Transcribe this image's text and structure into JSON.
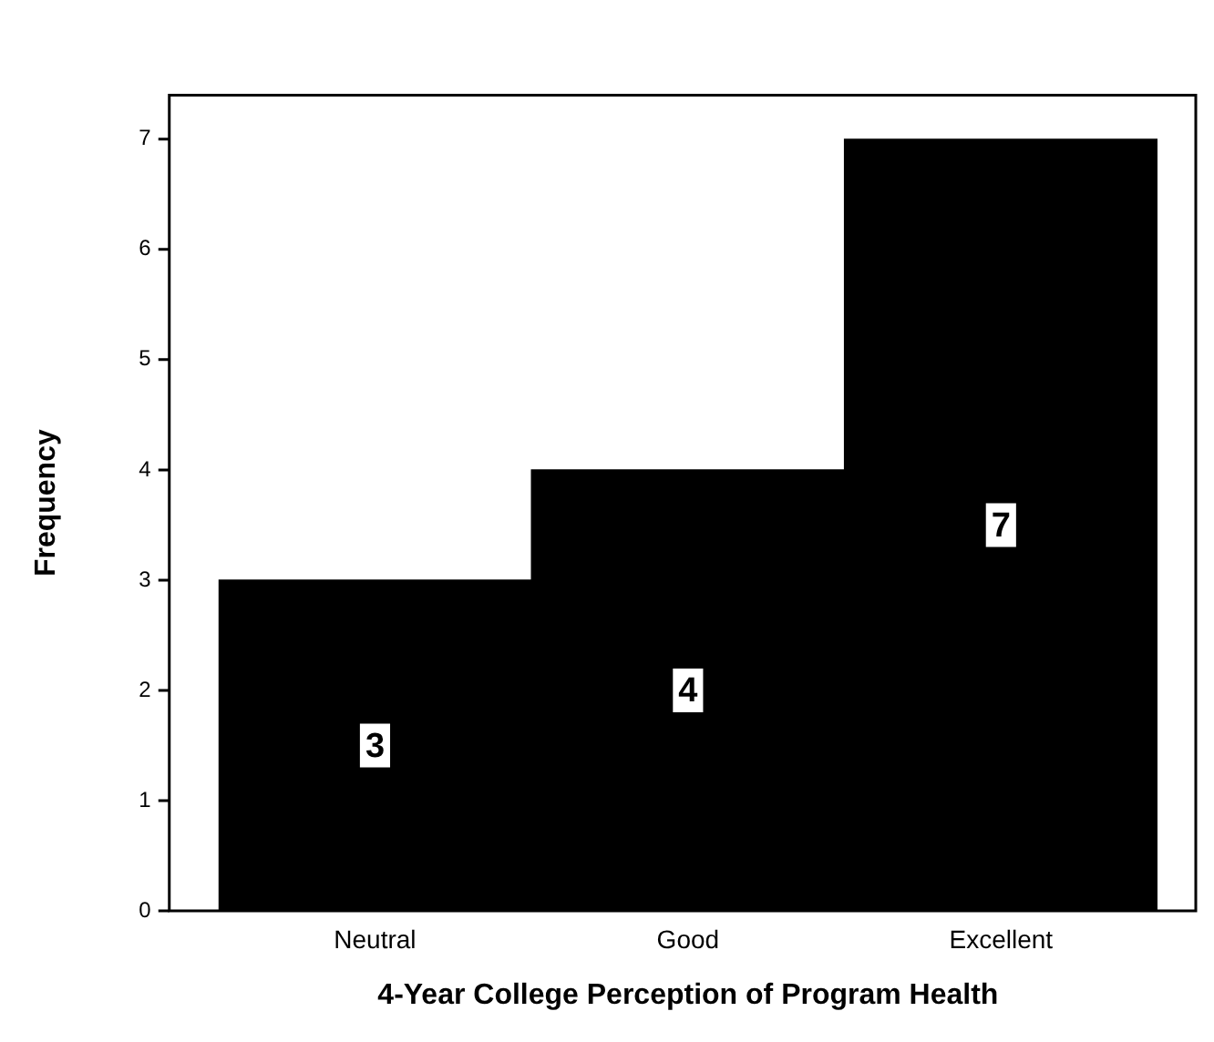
{
  "chart_data": {
    "type": "bar",
    "xlabel": "4-Year College Perception of Program Health",
    "ylabel": "Frequency",
    "categories": [
      "Neutral",
      "Good",
      "Excellent"
    ],
    "values": [
      3,
      4,
      7
    ],
    "color": "#000000",
    "ylim": [
      0,
      7.4
    ],
    "yticks": [
      0,
      1,
      2,
      3,
      4,
      5,
      6,
      7
    ],
    "data_labels": true,
    "grid": false,
    "legend": false
  }
}
